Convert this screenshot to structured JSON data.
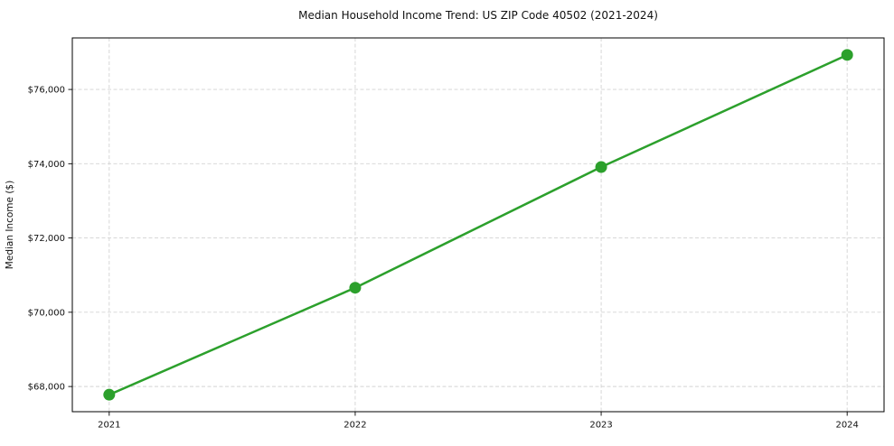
{
  "page": {
    "background": "#ffffff"
  },
  "chart_data": {
    "type": "line",
    "title": "Median Household Income Trend: US ZIP Code 40502 (2021-2024)",
    "xlabel": "",
    "ylabel": "Median Income ($)",
    "x": [
      2021,
      2022,
      2023,
      2024
    ],
    "x_tick_labels": [
      "2021",
      "2022",
      "2023",
      "2024"
    ],
    "values": [
      67780,
      70660,
      73910,
      76930
    ],
    "y_ticks": [
      68000,
      70000,
      72000,
      74000,
      76000
    ],
    "y_tick_labels": [
      "$68,000",
      "$70,000",
      "$72,000",
      "$74,000",
      "$76,000"
    ],
    "xlim": [
      2020.85,
      2024.15
    ],
    "ylim": [
      67322,
      77388
    ],
    "grid": true,
    "legend": "none",
    "style": {
      "line_color": "#2ca02c",
      "marker": "circle",
      "marker_radius": 6.5,
      "line_width": 2.5,
      "grid_color": "#d3d3d3",
      "grid_dash": "4 2.5",
      "spine_color": "#000000",
      "tick_color": "#000000",
      "text_color": "#111111"
    }
  }
}
